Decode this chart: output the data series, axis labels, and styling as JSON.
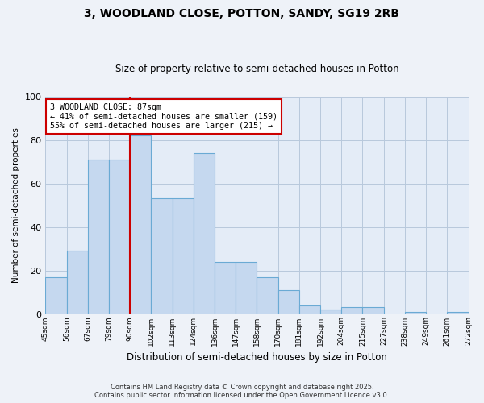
{
  "title_line1": "3, WOODLAND CLOSE, POTTON, SANDY, SG19 2RB",
  "title_line2": "Size of property relative to semi-detached houses in Potton",
  "xlabel": "Distribution of semi-detached houses by size in Potton",
  "ylabel": "Number of semi-detached properties",
  "bar_values": [
    17,
    29,
    71,
    71,
    82,
    53,
    53,
    74,
    24,
    24,
    17,
    11,
    4,
    2,
    3,
    3,
    0,
    1,
    0,
    1
  ],
  "categories": [
    "45sqm",
    "56sqm",
    "67sqm",
    "79sqm",
    "90sqm",
    "102sqm",
    "113sqm",
    "124sqm",
    "136sqm",
    "147sqm",
    "158sqm",
    "170sqm",
    "181sqm",
    "192sqm",
    "204sqm",
    "215sqm",
    "227sqm",
    "238sqm",
    "249sqm",
    "261sqm",
    "272sqm"
  ],
  "bar_color": "#c5d8ef",
  "bar_edge_color": "#6aaad4",
  "vline_color": "#cc0000",
  "vline_x": 3.5,
  "annotation_text": "3 WOODLAND CLOSE: 87sqm\n← 41% of semi-detached houses are smaller (159)\n55% of semi-detached houses are larger (215) →",
  "annotation_box_color": "#ffffff",
  "annotation_box_edge_color": "#cc0000",
  "footer_line1": "Contains HM Land Registry data © Crown copyright and database right 2025.",
  "footer_line2": "Contains public sector information licensed under the Open Government Licence v3.0.",
  "ylim": [
    0,
    100
  ],
  "background_color": "#eef2f8",
  "plot_background_color": "#e4ecf7"
}
